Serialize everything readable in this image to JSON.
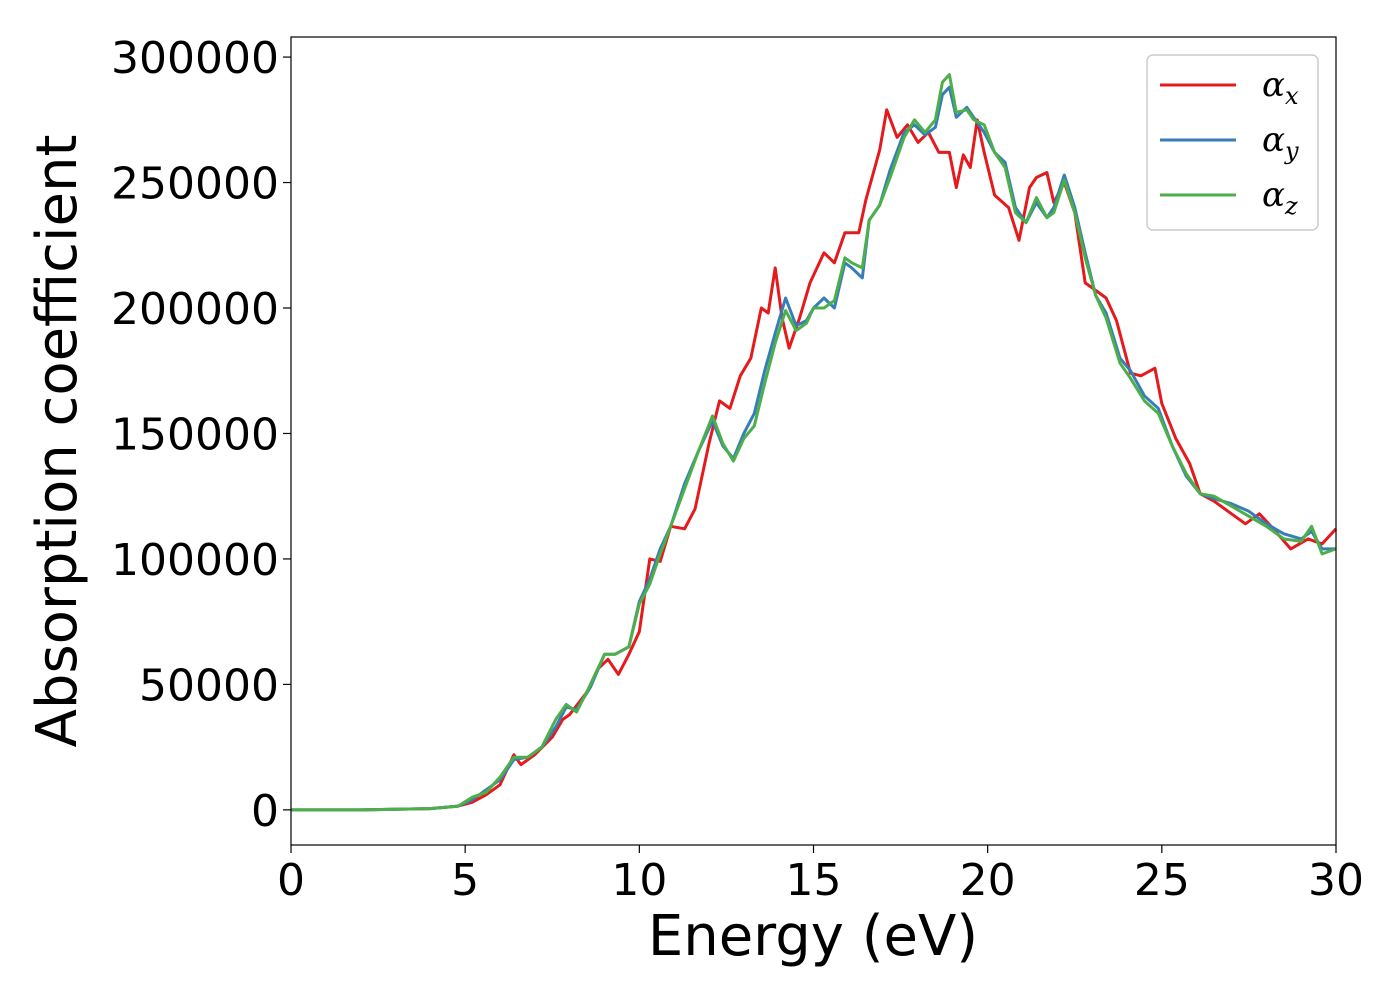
{
  "colors": {
    "alpha_x": "#e41a1c",
    "alpha_y": "#377eb8",
    "alpha_z": "#4daf4a"
  },
  "chart_data": {
    "type": "line",
    "title": "",
    "xlabel": "Energy (eV)",
    "ylabel": "Absorption coefficient",
    "xlim": [
      0,
      30
    ],
    "ylim": [
      -14000,
      308000
    ],
    "xticks": [
      0,
      5,
      10,
      15,
      20,
      25,
      30
    ],
    "xtick_labels": [
      "0",
      "5",
      "10",
      "15",
      "20",
      "25",
      "30"
    ],
    "yticks": [
      0,
      50000,
      100000,
      150000,
      200000,
      250000,
      300000
    ],
    "ytick_labels": [
      "0",
      "50000",
      "100000",
      "150000",
      "200000",
      "250000",
      "300000"
    ],
    "grid": false,
    "legend_position": "top-right",
    "legend": [
      {
        "symbol": "α",
        "subscript": "x"
      },
      {
        "symbol": "α",
        "subscript": "y"
      },
      {
        "symbol": "α",
        "subscript": "z"
      }
    ],
    "series": [
      {
        "name": "αx",
        "color": "#e41a1c",
        "points": [
          [
            0,
            0
          ],
          [
            2,
            0
          ],
          [
            4,
            500
          ],
          [
            4.8,
            1500
          ],
          [
            5.2,
            3000
          ],
          [
            5.6,
            6000
          ],
          [
            6.0,
            10000
          ],
          [
            6.4,
            22000
          ],
          [
            6.6,
            18000
          ],
          [
            7.0,
            22000
          ],
          [
            7.5,
            29000
          ],
          [
            7.8,
            36000
          ],
          [
            8.0,
            38000
          ],
          [
            8.5,
            47000
          ],
          [
            8.8,
            56000
          ],
          [
            9.1,
            60000
          ],
          [
            9.4,
            54000
          ],
          [
            9.7,
            62000
          ],
          [
            10.0,
            71000
          ],
          [
            10.3,
            100000
          ],
          [
            10.6,
            99000
          ],
          [
            10.9,
            113000
          ],
          [
            11.3,
            112000
          ],
          [
            11.6,
            120000
          ],
          [
            12.0,
            146000
          ],
          [
            12.3,
            163000
          ],
          [
            12.6,
            160000
          ],
          [
            12.9,
            173000
          ],
          [
            13.2,
            180000
          ],
          [
            13.5,
            200000
          ],
          [
            13.7,
            198000
          ],
          [
            13.9,
            216000
          ],
          [
            14.1,
            196000
          ],
          [
            14.3,
            184000
          ],
          [
            14.6,
            196000
          ],
          [
            14.9,
            210000
          ],
          [
            15.3,
            222000
          ],
          [
            15.6,
            218000
          ],
          [
            15.9,
            230000
          ],
          [
            16.3,
            230000
          ],
          [
            16.5,
            243000
          ],
          [
            16.9,
            263000
          ],
          [
            17.1,
            279000
          ],
          [
            17.4,
            268000
          ],
          [
            17.7,
            273000
          ],
          [
            18.0,
            266000
          ],
          [
            18.3,
            270000
          ],
          [
            18.6,
            262000
          ],
          [
            18.9,
            262000
          ],
          [
            19.1,
            248000
          ],
          [
            19.3,
            261000
          ],
          [
            19.5,
            256000
          ],
          [
            19.7,
            275000
          ],
          [
            19.9,
            262000
          ],
          [
            20.2,
            245000
          ],
          [
            20.6,
            240000
          ],
          [
            20.9,
            227000
          ],
          [
            21.2,
            248000
          ],
          [
            21.4,
            252000
          ],
          [
            21.7,
            254000
          ],
          [
            21.9,
            242000
          ],
          [
            22.2,
            250000
          ],
          [
            22.5,
            238000
          ],
          [
            22.8,
            210000
          ],
          [
            23.1,
            207000
          ],
          [
            23.4,
            204000
          ],
          [
            23.7,
            195000
          ],
          [
            24.1,
            174000
          ],
          [
            24.4,
            173000
          ],
          [
            24.8,
            176000
          ],
          [
            25.0,
            162000
          ],
          [
            25.4,
            148000
          ],
          [
            25.8,
            138000
          ],
          [
            26.1,
            126000
          ],
          [
            26.5,
            123000
          ],
          [
            27.0,
            118000
          ],
          [
            27.4,
            114000
          ],
          [
            27.8,
            118000
          ],
          [
            28.2,
            112000
          ],
          [
            28.7,
            104000
          ],
          [
            29.2,
            108000
          ],
          [
            29.6,
            106000
          ],
          [
            30,
            112000
          ]
        ]
      },
      {
        "name": "αy",
        "color": "#377eb8",
        "points": [
          [
            0,
            0
          ],
          [
            2,
            0
          ],
          [
            4,
            500
          ],
          [
            4.8,
            1500
          ],
          [
            5.2,
            4000
          ],
          [
            5.6,
            8000
          ],
          [
            6.0,
            12000
          ],
          [
            6.4,
            20000
          ],
          [
            6.8,
            21000
          ],
          [
            7.2,
            25000
          ],
          [
            7.6,
            33000
          ],
          [
            7.9,
            41000
          ],
          [
            8.2,
            40000
          ],
          [
            8.6,
            49000
          ],
          [
            9.0,
            62000
          ],
          [
            9.3,
            62000
          ],
          [
            9.7,
            65000
          ],
          [
            10.0,
            83000
          ],
          [
            10.3,
            92000
          ],
          [
            10.6,
            104000
          ],
          [
            10.9,
            113000
          ],
          [
            11.3,
            130000
          ],
          [
            11.7,
            143000
          ],
          [
            12.1,
            155000
          ],
          [
            12.4,
            145000
          ],
          [
            12.7,
            140000
          ],
          [
            13.0,
            150000
          ],
          [
            13.3,
            158000
          ],
          [
            13.6,
            175000
          ],
          [
            13.9,
            190000
          ],
          [
            14.2,
            204000
          ],
          [
            14.5,
            193000
          ],
          [
            14.8,
            195000
          ],
          [
            15.0,
            200000
          ],
          [
            15.3,
            204000
          ],
          [
            15.6,
            200000
          ],
          [
            15.9,
            218000
          ],
          [
            16.1,
            216000
          ],
          [
            16.4,
            212000
          ],
          [
            16.6,
            235000
          ],
          [
            16.9,
            241000
          ],
          [
            17.2,
            255000
          ],
          [
            17.6,
            270000
          ],
          [
            17.9,
            273000
          ],
          [
            18.2,
            269000
          ],
          [
            18.5,
            272000
          ],
          [
            18.7,
            285000
          ],
          [
            18.9,
            288000
          ],
          [
            19.1,
            276000
          ],
          [
            19.4,
            280000
          ],
          [
            19.6,
            276000
          ],
          [
            19.9,
            270000
          ],
          [
            20.2,
            262000
          ],
          [
            20.5,
            258000
          ],
          [
            20.8,
            240000
          ],
          [
            21.1,
            234000
          ],
          [
            21.4,
            242000
          ],
          [
            21.7,
            236000
          ],
          [
            21.9,
            240000
          ],
          [
            22.2,
            253000
          ],
          [
            22.5,
            240000
          ],
          [
            22.8,
            222000
          ],
          [
            23.1,
            205000
          ],
          [
            23.4,
            198000
          ],
          [
            23.8,
            180000
          ],
          [
            24.1,
            175000
          ],
          [
            24.5,
            165000
          ],
          [
            24.9,
            160000
          ],
          [
            25.3,
            145000
          ],
          [
            25.7,
            133000
          ],
          [
            26.1,
            126000
          ],
          [
            26.5,
            124000
          ],
          [
            27.0,
            122000
          ],
          [
            27.5,
            119000
          ],
          [
            28.0,
            114000
          ],
          [
            28.5,
            110000
          ],
          [
            29.0,
            108000
          ],
          [
            29.3,
            111000
          ],
          [
            29.6,
            104000
          ],
          [
            30,
            104000
          ]
        ]
      },
      {
        "name": "αz",
        "color": "#4daf4a",
        "points": [
          [
            0,
            0
          ],
          [
            2,
            0
          ],
          [
            4,
            500
          ],
          [
            4.8,
            1500
          ],
          [
            5.2,
            5000
          ],
          [
            5.6,
            7000
          ],
          [
            6.0,
            13000
          ],
          [
            6.4,
            21000
          ],
          [
            6.8,
            21000
          ],
          [
            7.2,
            25000
          ],
          [
            7.6,
            36000
          ],
          [
            7.9,
            42000
          ],
          [
            8.2,
            39000
          ],
          [
            8.6,
            50000
          ],
          [
            9.0,
            62000
          ],
          [
            9.3,
            62000
          ],
          [
            9.7,
            65000
          ],
          [
            10.0,
            82000
          ],
          [
            10.3,
            90000
          ],
          [
            10.6,
            102000
          ],
          [
            10.9,
            113000
          ],
          [
            11.3,
            128000
          ],
          [
            11.7,
            143000
          ],
          [
            12.1,
            157000
          ],
          [
            12.4,
            146000
          ],
          [
            12.7,
            139000
          ],
          [
            13.0,
            148000
          ],
          [
            13.3,
            153000
          ],
          [
            13.6,
            170000
          ],
          [
            13.9,
            186000
          ],
          [
            14.2,
            199000
          ],
          [
            14.5,
            191000
          ],
          [
            14.8,
            194000
          ],
          [
            15.0,
            200000
          ],
          [
            15.3,
            200000
          ],
          [
            15.6,
            203000
          ],
          [
            15.9,
            220000
          ],
          [
            16.1,
            218000
          ],
          [
            16.4,
            216000
          ],
          [
            16.6,
            235000
          ],
          [
            16.9,
            241000
          ],
          [
            17.2,
            252000
          ],
          [
            17.6,
            268000
          ],
          [
            17.9,
            275000
          ],
          [
            18.2,
            270000
          ],
          [
            18.5,
            275000
          ],
          [
            18.7,
            290000
          ],
          [
            18.9,
            293000
          ],
          [
            19.1,
            278000
          ],
          [
            19.4,
            279000
          ],
          [
            19.6,
            275000
          ],
          [
            19.9,
            273000
          ],
          [
            20.2,
            262000
          ],
          [
            20.5,
            256000
          ],
          [
            20.8,
            238000
          ],
          [
            21.1,
            234000
          ],
          [
            21.4,
            244000
          ],
          [
            21.7,
            236000
          ],
          [
            21.9,
            238000
          ],
          [
            22.2,
            251000
          ],
          [
            22.5,
            238000
          ],
          [
            22.8,
            220000
          ],
          [
            23.1,
            205000
          ],
          [
            23.4,
            196000
          ],
          [
            23.8,
            178000
          ],
          [
            24.1,
            172000
          ],
          [
            24.5,
            163000
          ],
          [
            24.9,
            158000
          ],
          [
            25.3,
            145000
          ],
          [
            25.7,
            134000
          ],
          [
            26.1,
            126000
          ],
          [
            26.5,
            125000
          ],
          [
            27.0,
            121000
          ],
          [
            27.5,
            117000
          ],
          [
            28.0,
            113000
          ],
          [
            28.5,
            108000
          ],
          [
            29.0,
            107000
          ],
          [
            29.3,
            113000
          ],
          [
            29.6,
            102000
          ],
          [
            30,
            104000
          ]
        ]
      }
    ]
  }
}
